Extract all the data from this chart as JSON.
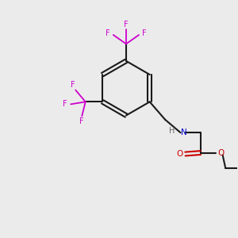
{
  "bg_color": "#ebebeb",
  "bond_color": "#1a1a1a",
  "N_color": "#0000cc",
  "O_color": "#cc0000",
  "F_color": "#cc00cc",
  "figsize": [
    3.0,
    3.0
  ],
  "dpi": 100,
  "xlim": [
    0,
    10
  ],
  "ylim": [
    0,
    10
  ]
}
